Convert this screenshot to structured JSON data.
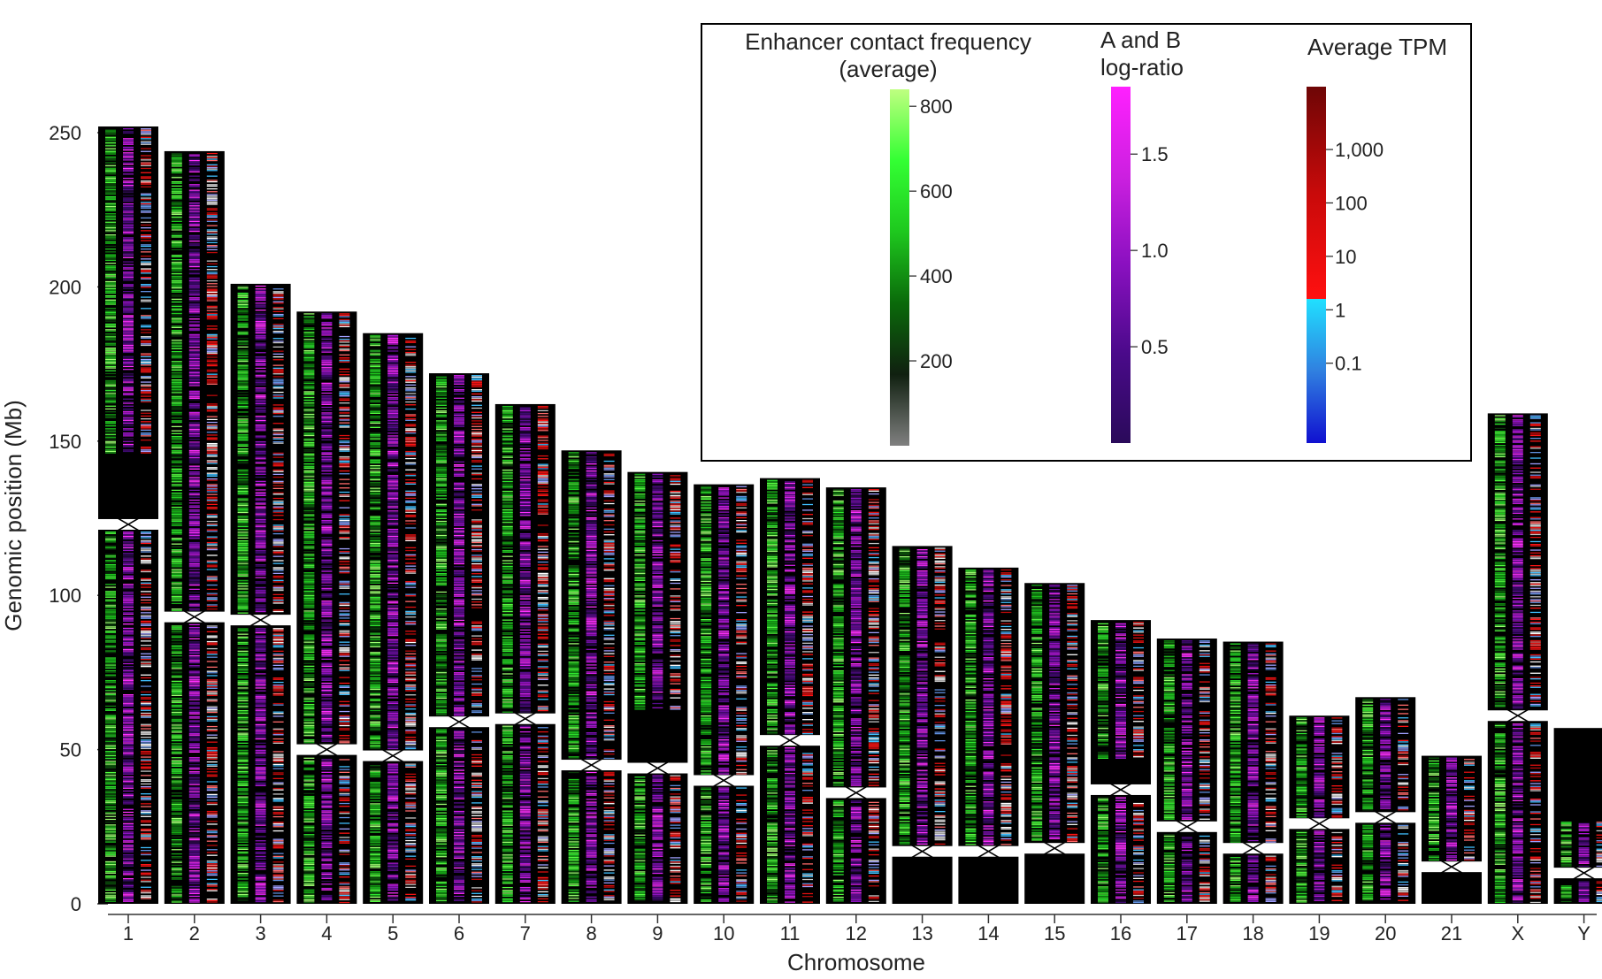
{
  "chart_data": {
    "type": "heatmap",
    "title": "",
    "xlabel": "Chromosome",
    "ylabel": "Genomic position (Mb)",
    "ylim": [
      0,
      250
    ],
    "yticks": [
      0,
      50,
      100,
      150,
      200,
      250
    ],
    "yticks_text": [
      "0",
      "50",
      "100",
      "150",
      "200",
      "250"
    ],
    "grid": false,
    "chromosomes": [
      {
        "name": "1",
        "length": 252,
        "centromere": 123,
        "gap": [
          122,
          146
        ]
      },
      {
        "name": "2",
        "length": 244,
        "centromere": 93
      },
      {
        "name": "3",
        "length": 201,
        "centromere": 92
      },
      {
        "name": "4",
        "length": 192,
        "centromere": 50
      },
      {
        "name": "5",
        "length": 185,
        "centromere": 48
      },
      {
        "name": "6",
        "length": 172,
        "centromere": 59
      },
      {
        "name": "7",
        "length": 162,
        "centromere": 60
      },
      {
        "name": "8",
        "length": 147,
        "centromere": 45
      },
      {
        "name": "9",
        "length": 140,
        "centromere": 44,
        "gap": [
          43,
          63
        ]
      },
      {
        "name": "10",
        "length": 136,
        "centromere": 40
      },
      {
        "name": "11",
        "length": 138,
        "centromere": 53
      },
      {
        "name": "12",
        "length": 135,
        "centromere": 36
      },
      {
        "name": "13",
        "length": 116,
        "centromere": 17,
        "gap": [
          0,
          16
        ]
      },
      {
        "name": "14",
        "length": 109,
        "centromere": 17,
        "gap": [
          0,
          16
        ]
      },
      {
        "name": "15",
        "length": 104,
        "centromere": 18,
        "gap": [
          0,
          17
        ]
      },
      {
        "name": "16",
        "length": 92,
        "centromere": 37,
        "gap": [
          36,
          47
        ]
      },
      {
        "name": "17",
        "length": 86,
        "centromere": 25
      },
      {
        "name": "18",
        "length": 85,
        "centromere": 18
      },
      {
        "name": "19",
        "length": 61,
        "centromere": 26
      },
      {
        "name": "20",
        "length": 67,
        "centromere": 28
      },
      {
        "name": "21",
        "length": 48,
        "centromere": 12,
        "gap": [
          0,
          11
        ]
      },
      {
        "name": "X",
        "length": 159,
        "centromere": 61
      },
      {
        "name": "Y",
        "length": 57,
        "centromere": 10,
        "gap": [
          27,
          57
        ]
      }
    ],
    "tracks": [
      "Enhancer contact frequency (average)",
      "A and B log-ratio",
      "Average TPM"
    ],
    "legend": {
      "placement": "top-right",
      "scales": [
        {
          "title_lines": [
            "Enhancer contact frequency",
            "(average)"
          ],
          "ticks": [
            "800",
            "600",
            "400",
            "200"
          ],
          "tick_values": [
            800,
            600,
            400,
            200
          ],
          "range": [
            0,
            840
          ],
          "colors": [
            "#808080",
            "#102010",
            "#0a6a0a",
            "#1ec81e",
            "#33ff33",
            "#bfff80"
          ]
        },
        {
          "title_lines": [
            "A and B",
            "log-ratio"
          ],
          "ticks": [
            "1.5",
            "1.0",
            "0.5"
          ],
          "tick_values": [
            1.5,
            1.0,
            0.5
          ],
          "range": [
            0,
            1.85
          ],
          "colors": [
            "#2a0a5a",
            "#4a0a8a",
            "#8a10c0",
            "#cc20e0",
            "#ff20ff"
          ]
        },
        {
          "title_lines": [
            "Average TPM"
          ],
          "ticks": [
            "1,000",
            "100",
            "10",
            "1",
            "0.1"
          ],
          "tick_values": [
            1000,
            100,
            10,
            1,
            0.1
          ],
          "colors_low": [
            "#1010d0",
            "#3080e0",
            "#20e0ff"
          ],
          "colors_high": [
            "#ff1010",
            "#c80a0a",
            "#6e0606"
          ]
        }
      ]
    }
  }
}
